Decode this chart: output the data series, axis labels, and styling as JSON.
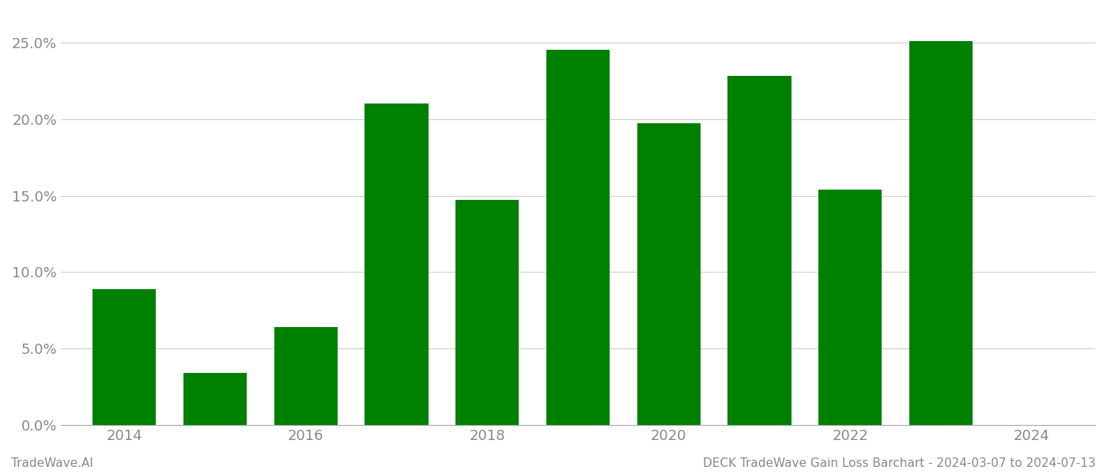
{
  "years": [
    2014,
    2015,
    2016,
    2017,
    2018,
    2019,
    2020,
    2021,
    2022,
    2023
  ],
  "values": [
    0.089,
    0.034,
    0.064,
    0.21,
    0.147,
    0.245,
    0.197,
    0.228,
    0.154,
    0.251
  ],
  "bar_color": "#008000",
  "background_color": "#ffffff",
  "grid_color": "#cccccc",
  "axis_label_color": "#888888",
  "ylim": [
    0,
    0.27
  ],
  "yticks": [
    0.0,
    0.05,
    0.1,
    0.15,
    0.2,
    0.25
  ],
  "xlim_min": 2013.3,
  "xlim_max": 2024.7,
  "xticks": [
    2014,
    2016,
    2018,
    2020,
    2022,
    2024
  ],
  "bar_width": 0.7,
  "footer_left": "TradeWave.AI",
  "footer_right": "DECK TradeWave Gain Loss Barchart - 2024-03-07 to 2024-07-13",
  "footer_color": "#888888",
  "footer_fontsize": 11,
  "tick_fontsize": 13
}
